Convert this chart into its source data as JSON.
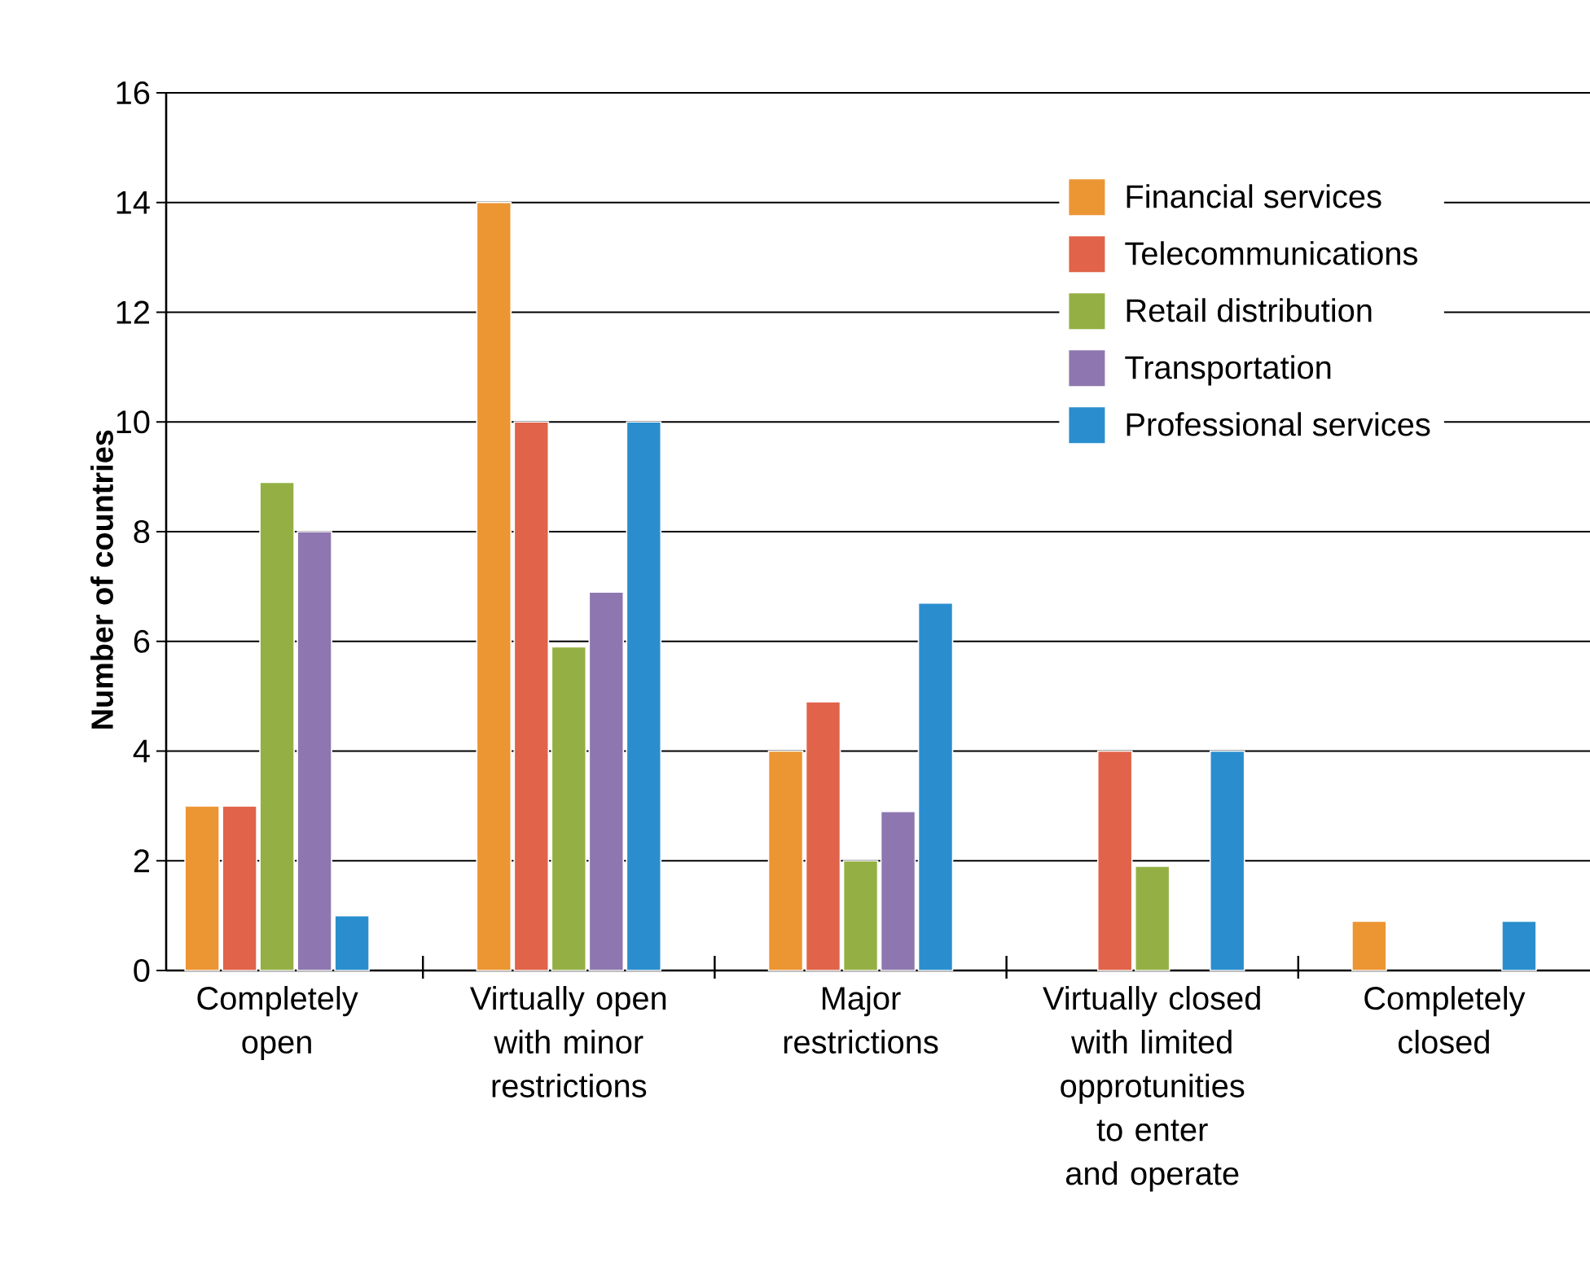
{
  "chart_data": {
    "type": "bar",
    "ylabel": "Number of countries",
    "categories": [
      "Completely open",
      "Virtually open with minor restrictions",
      "Major restrictions",
      "Virtually closed with limited opprotunities to enter and operate",
      "Completely closed"
    ],
    "series": [
      {
        "name": "Financial services",
        "color": "#ec9533",
        "values": [
          3,
          14,
          4,
          null,
          0.9
        ]
      },
      {
        "name": "Telecommunications",
        "color": "#e0634a",
        "values": [
          3,
          10,
          4.9,
          4,
          null
        ]
      },
      {
        "name": "Retail distribution",
        "color": "#94b045",
        "values": [
          8.9,
          5.9,
          2,
          1.9,
          null
        ]
      },
      {
        "name": "Transportation",
        "color": "#8e77b0",
        "values": [
          8,
          6.9,
          2.9,
          null,
          null
        ]
      },
      {
        "name": "Professional services",
        "color": "#2a8ece",
        "values": [
          1,
          10,
          6.7,
          4,
          0.9
        ]
      }
    ],
    "ylim": [
      0,
      16
    ],
    "yticks": [
      0,
      2,
      4,
      6,
      8,
      10,
      12,
      14,
      16
    ],
    "grid": "y",
    "legend": "top right"
  }
}
